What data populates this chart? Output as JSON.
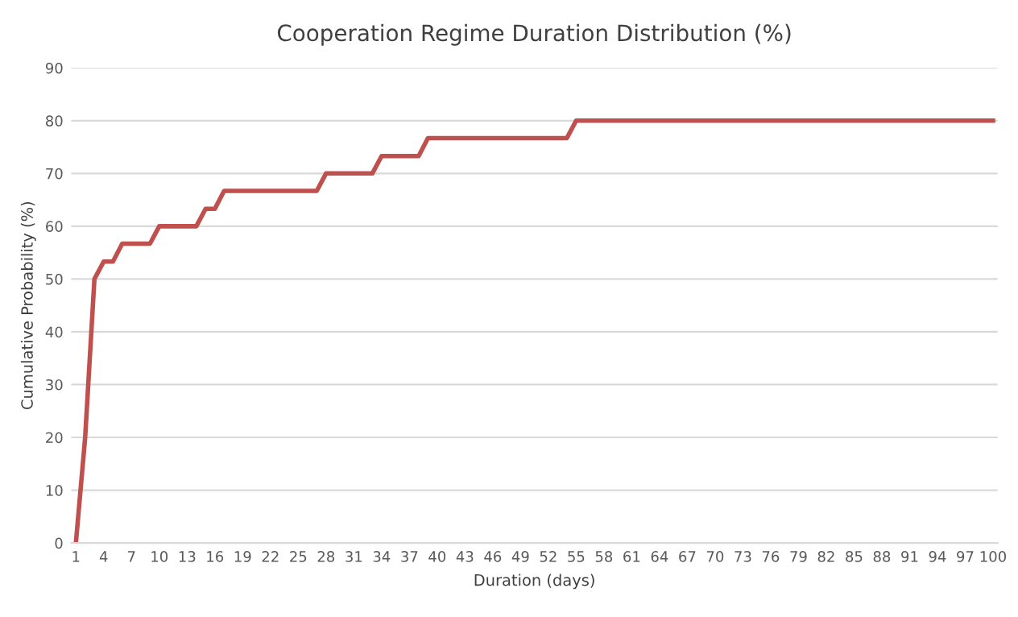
{
  "chart_data": {
    "type": "line",
    "title": "Cooperation Regime Duration Distribution (%)",
    "xlabel": "Duration (days)",
    "ylabel": "Cumulative Probability (%)",
    "categories": [
      "1",
      null,
      null,
      "4",
      null,
      null,
      "7",
      null,
      null,
      "10",
      null,
      null,
      "13",
      null,
      null,
      "16",
      null,
      null,
      "19",
      null,
      null,
      "22",
      null,
      null,
      "25",
      null,
      null,
      "28",
      null,
      null,
      "31",
      null,
      null,
      "34",
      null,
      null,
      "37",
      null,
      null,
      "40",
      null,
      null,
      "43",
      null,
      null,
      "46",
      null,
      null,
      "49",
      null,
      null,
      "52",
      null,
      null,
      "55",
      null,
      null,
      "58",
      null,
      null,
      "61",
      null,
      null,
      "64",
      null,
      null,
      "67",
      null,
      null,
      "70",
      null,
      null,
      "73",
      null,
      null,
      "76",
      null,
      null,
      "79",
      null,
      null,
      "82",
      null,
      null,
      "85",
      null,
      null,
      "88",
      null,
      null,
      "91",
      null,
      null,
      "94",
      null,
      null,
      "97",
      null,
      null,
      "100"
    ],
    "series": [
      {
        "color": "#c0504d",
        "values": [
          0,
          20,
          50,
          53.3,
          53.3,
          56.7,
          56.7,
          56.7,
          56.7,
          60,
          60,
          60,
          60,
          60,
          63.3,
          63.3,
          66.7,
          66.7,
          66.7,
          66.7,
          66.7,
          66.7,
          66.7,
          66.7,
          66.7,
          66.7,
          66.7,
          70,
          70,
          70,
          70,
          70,
          70,
          73.3,
          73.3,
          73.3,
          73.3,
          73.3,
          76.7,
          76.7,
          76.7,
          76.7,
          76.7,
          76.7,
          76.7,
          76.7,
          76.7,
          76.7,
          76.7,
          76.7,
          76.7,
          76.7,
          76.7,
          76.7,
          80,
          80,
          80,
          80,
          80,
          80,
          80,
          80,
          80,
          80,
          80,
          80,
          80,
          80,
          80,
          80,
          80,
          80,
          80,
          80,
          80,
          80,
          80,
          80,
          80,
          80,
          80,
          80,
          80,
          80,
          80,
          80,
          80,
          80,
          80,
          80,
          80,
          80,
          80,
          80,
          80,
          80,
          80,
          80,
          80,
          80
        ]
      }
    ],
    "ylim": [
      0,
      90
    ],
    "yticks": [
      0,
      10,
      20,
      30,
      40,
      50,
      60,
      70,
      80,
      90
    ],
    "grid": "y",
    "legend": false,
    "marker": "none",
    "line_style": "solid"
  }
}
